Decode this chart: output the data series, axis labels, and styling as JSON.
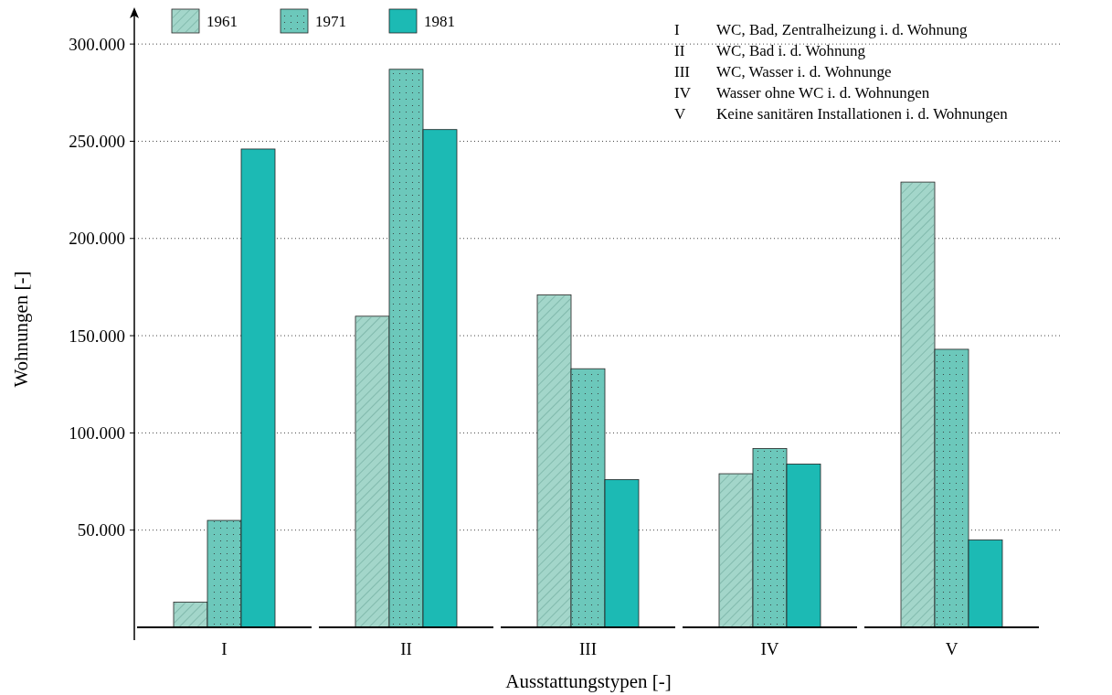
{
  "chart_data": {
    "type": "bar",
    "xlabel": "Ausstattungstypen [-]",
    "ylabel": "Wohnungen [-]",
    "categories": [
      "I",
      "II",
      "III",
      "IV",
      "V"
    ],
    "series": [
      {
        "name": "1961",
        "color": "#a3d6ca",
        "values": [
          13000,
          160000,
          171000,
          79000,
          229000
        ]
      },
      {
        "name": "1971",
        "color": "#6cc8bb",
        "values": [
          55000,
          287000,
          133000,
          92000,
          143000
        ]
      },
      {
        "name": "1981",
        "color": "#1cbab4",
        "values": [
          246000,
          256000,
          76000,
          84000,
          45000
        ]
      }
    ],
    "ylim": [
      0,
      317000
    ],
    "yticks": [
      {
        "value": 50000,
        "label": "50.000"
      },
      {
        "value": 100000,
        "label": "100.000"
      },
      {
        "value": 150000,
        "label": "150.000"
      },
      {
        "value": 200000,
        "label": "200.000"
      },
      {
        "value": 250000,
        "label": "250.000"
      },
      {
        "value": 300000,
        "label": "300.000"
      }
    ],
    "grid": "y",
    "legend": "top left",
    "annotations": [
      "I WC, Bad, Zentralheizung i. d. Wohnung",
      "II WC, Bad i. d. Wohnung",
      "III WC, Wasser i. d. Wohnunge",
      "IV Wasser ohne WC i. d. Wohnungen",
      "V Keine sanitären Installationen i. d. Wohnungen"
    ]
  }
}
